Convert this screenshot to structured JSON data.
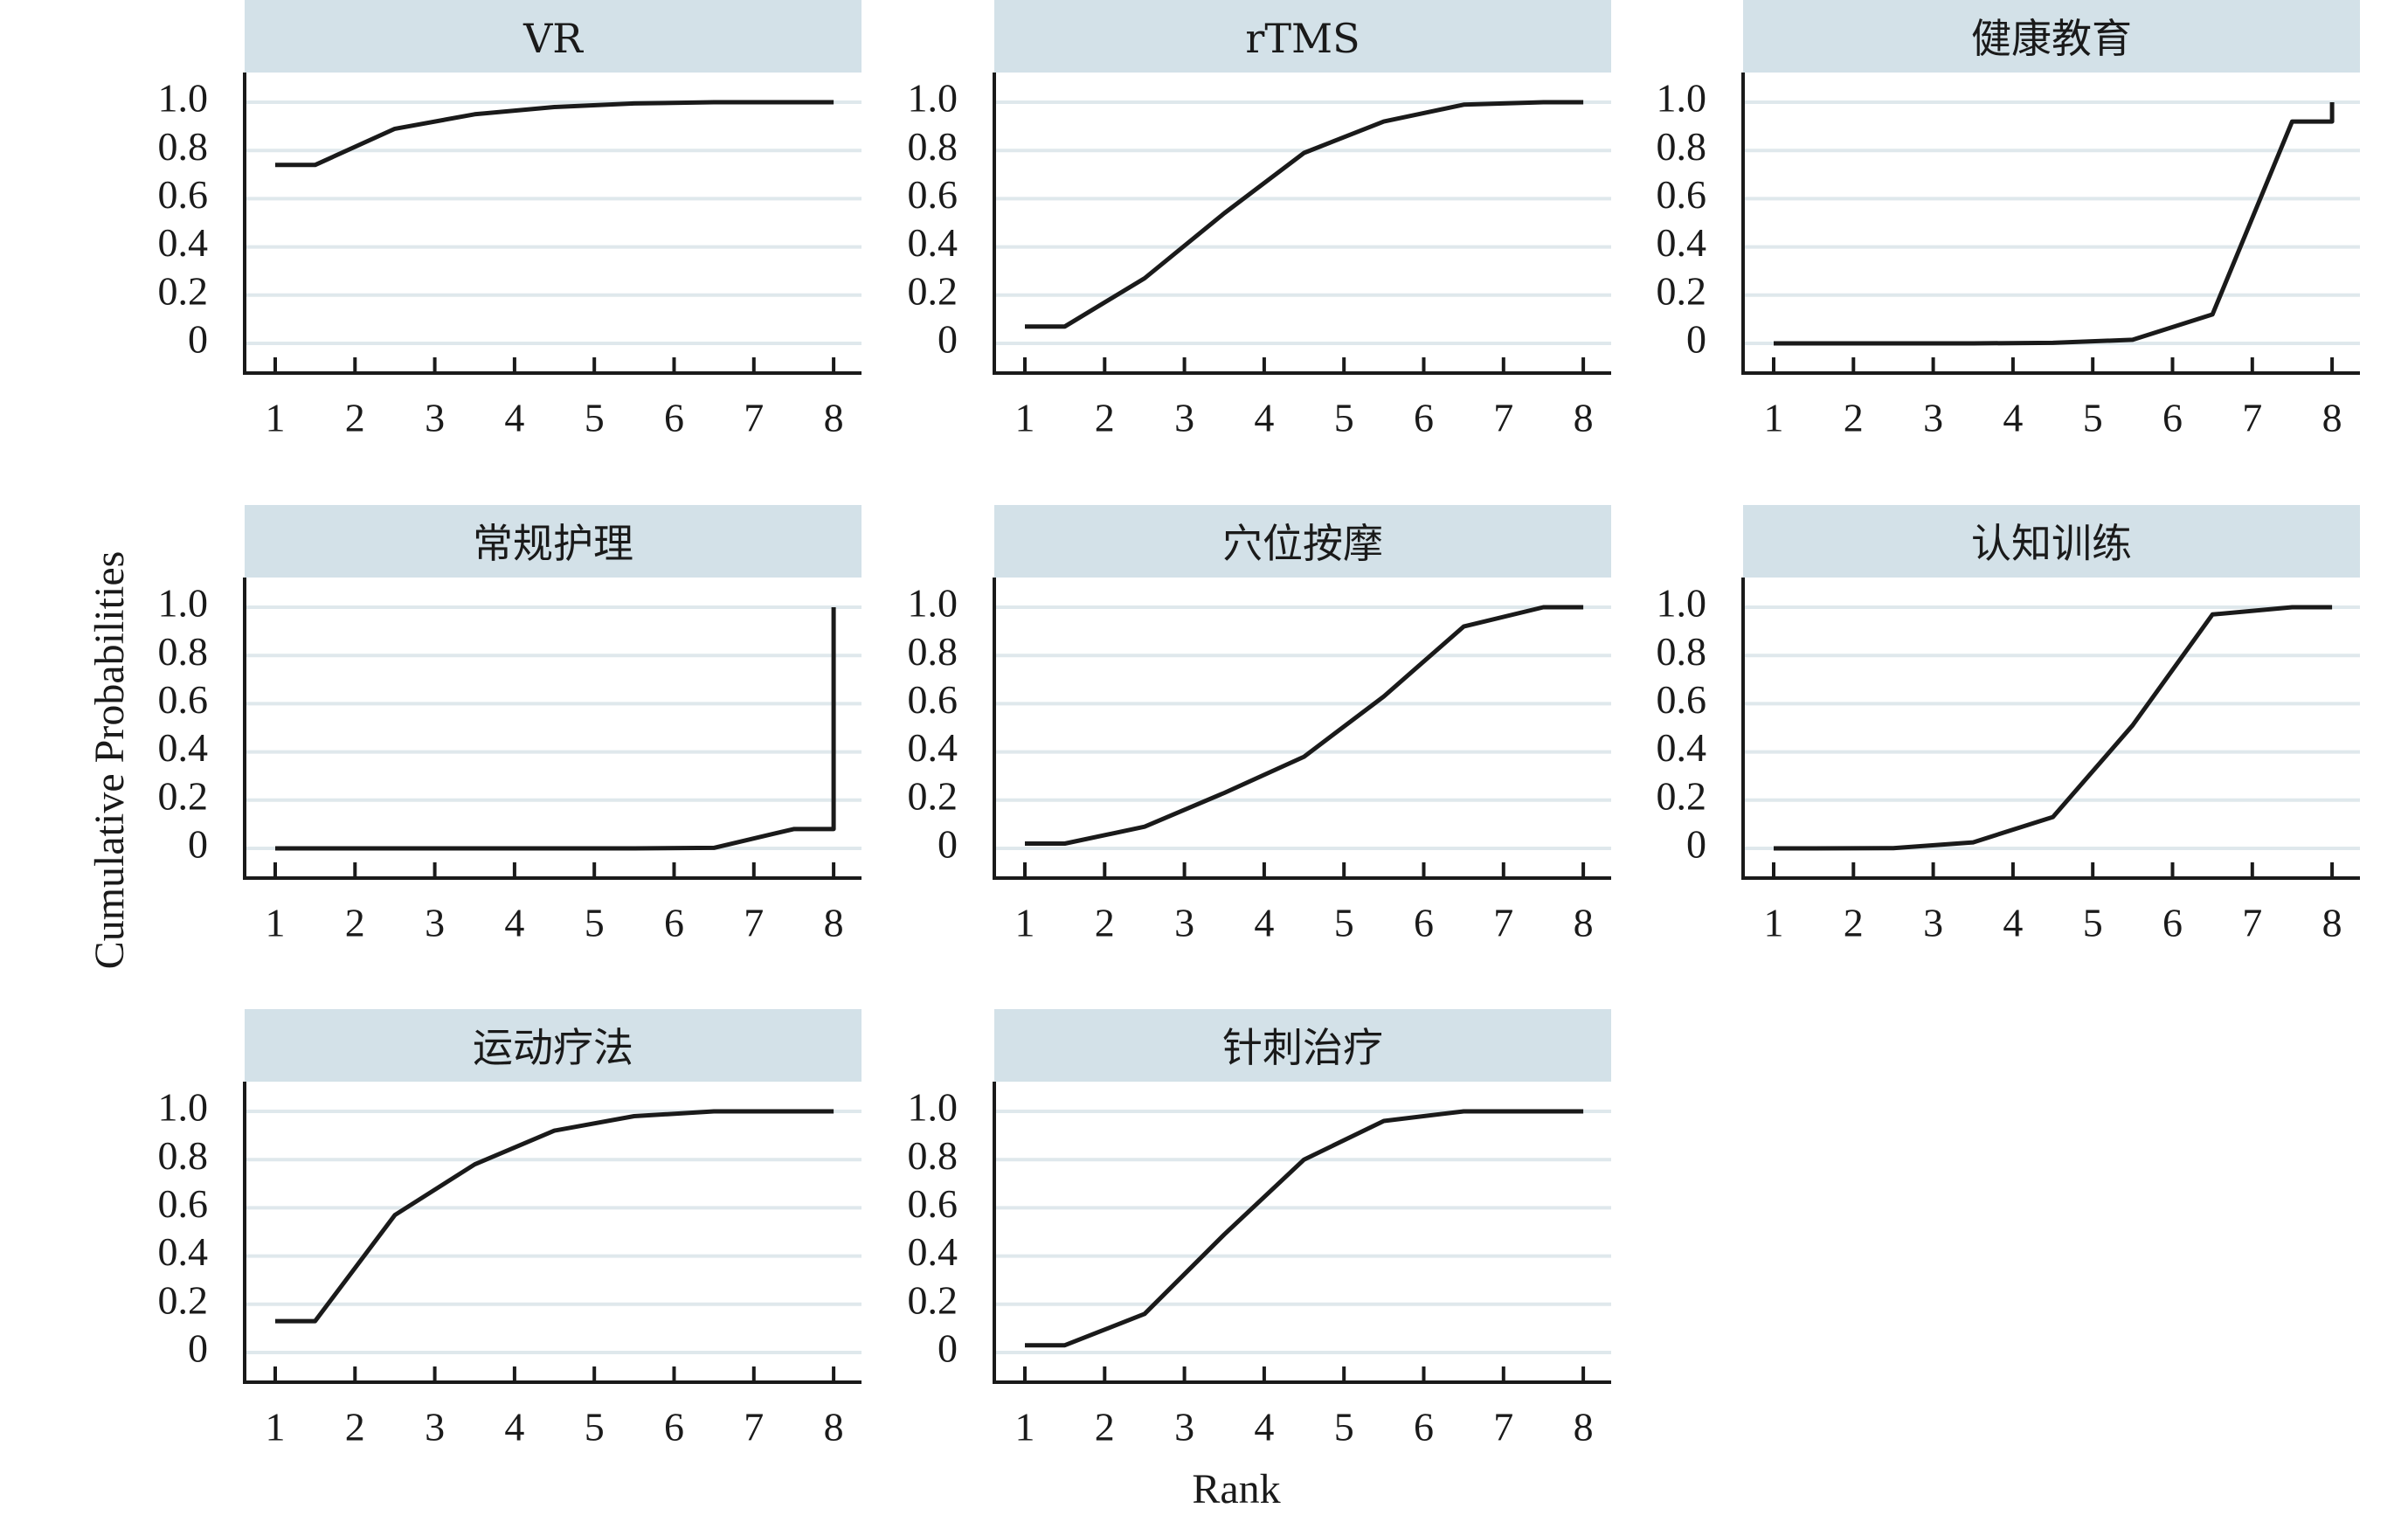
{
  "chart_data": {
    "type": "line",
    "xlabel": "Rank",
    "ylabel": "Cumulative Probabilities",
    "x_ticks": [
      1,
      2,
      3,
      4,
      5,
      6,
      7,
      8
    ],
    "y_ticks": [
      0,
      0.2,
      0.4,
      0.6,
      0.8,
      1.0
    ],
    "y_tick_labels": [
      "0",
      "0.2",
      "0.4",
      "0.6",
      "0.8",
      "1.0"
    ],
    "xlim": [
      0.6,
      8.4
    ],
    "ylim": [
      -0.13,
      1.13
    ],
    "grid": "horizontal",
    "colors": {
      "line": "#1a1a1a",
      "strip": "#d3e1e8",
      "grid": "#dfe8ec",
      "axis": "#1a1a1a"
    },
    "panels": [
      {
        "title": "VR",
        "x": [
          1,
          1.5,
          2.5,
          3.5,
          4.5,
          5.5,
          6.5,
          7.5,
          8
        ],
        "y": [
          0.74,
          0.74,
          0.89,
          0.95,
          0.98,
          0.995,
          1.0,
          1.0,
          1.0
        ]
      },
      {
        "title": "rTMS",
        "x": [
          1,
          1.5,
          2.5,
          3.5,
          4.5,
          5.5,
          6.5,
          7.5,
          8
        ],
        "y": [
          0.07,
          0.07,
          0.27,
          0.54,
          0.79,
          0.92,
          0.99,
          1.0,
          1.0
        ]
      },
      {
        "title": "健康教育",
        "x": [
          1,
          1.5,
          2.5,
          3.5,
          4.5,
          5.5,
          6.5,
          7.5,
          8,
          8
        ],
        "y": [
          0.0,
          0.0,
          0.0,
          0.0,
          0.002,
          0.015,
          0.12,
          0.92,
          0.92,
          1.0
        ]
      },
      {
        "title": "常规护理",
        "x": [
          1,
          1.5,
          2.5,
          3.5,
          4.5,
          5.5,
          6.5,
          7.5,
          8,
          8
        ],
        "y": [
          0.0,
          0.0,
          0.0,
          0.0,
          0.0,
          0.0,
          0.002,
          0.08,
          0.08,
          1.0
        ]
      },
      {
        "title": "穴位按摩",
        "x": [
          1,
          1.5,
          2.5,
          3.5,
          4.5,
          5.5,
          6.5,
          7.5,
          8
        ],
        "y": [
          0.02,
          0.02,
          0.09,
          0.23,
          0.38,
          0.63,
          0.92,
          1.0,
          1.0
        ]
      },
      {
        "title": "认知训练",
        "x": [
          1,
          1.5,
          2.5,
          3.5,
          4.5,
          5.5,
          6.5,
          7.5,
          8
        ],
        "y": [
          0.0,
          0.0,
          0.001,
          0.025,
          0.13,
          0.51,
          0.97,
          1.0,
          1.0
        ]
      },
      {
        "title": "运动疗法",
        "x": [
          1,
          1.5,
          2.5,
          3.5,
          4.5,
          5.5,
          6.5,
          7.5,
          8
        ],
        "y": [
          0.13,
          0.13,
          0.57,
          0.78,
          0.92,
          0.98,
          1.0,
          1.0,
          1.0
        ]
      },
      {
        "title": "针刺治疗",
        "x": [
          1,
          1.5,
          2.5,
          3.5,
          4.5,
          5.5,
          6.5,
          7.5,
          8
        ],
        "y": [
          0.03,
          0.03,
          0.16,
          0.49,
          0.8,
          0.96,
          1.0,
          1.0,
          1.0
        ]
      }
    ]
  }
}
